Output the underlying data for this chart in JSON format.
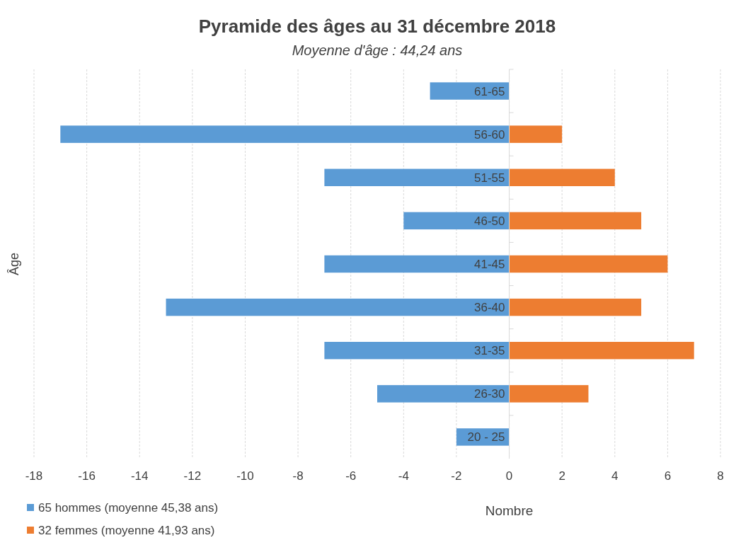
{
  "chart_data": {
    "type": "bar",
    "orientation": "horizontal",
    "title": "Pyramide des âges au 31 décembre 2018",
    "subtitle": "Moyenne d'âge : 44,24 ans",
    "xlabel": "Nombre",
    "ylabel": "Âge",
    "categories": [
      "61-65",
      "56-60",
      "51-55",
      "46-50",
      "41-45",
      "36-40",
      "31-35",
      "26-30",
      "20 - 25"
    ],
    "series": [
      {
        "name": "65 hommes (moyenne  45,38 ans)",
        "color": "#5b9bd5",
        "values": [
          -3,
          -17,
          -7,
          -4,
          -7,
          -13,
          -7,
          -5,
          -2
        ]
      },
      {
        "name": "32 femmes (moyenne 41,93 ans)",
        "color": "#ed7d31",
        "values": [
          null,
          2,
          4,
          5,
          6,
          5,
          7,
          3,
          null
        ]
      }
    ],
    "xlim": [
      -18,
      8
    ],
    "xticks": [
      -18,
      -16,
      -14,
      -12,
      -10,
      -8,
      -6,
      -4,
      -2,
      0,
      2,
      4,
      6,
      8
    ],
    "grid": "x",
    "legend": "bottom left",
    "stacked": true
  }
}
